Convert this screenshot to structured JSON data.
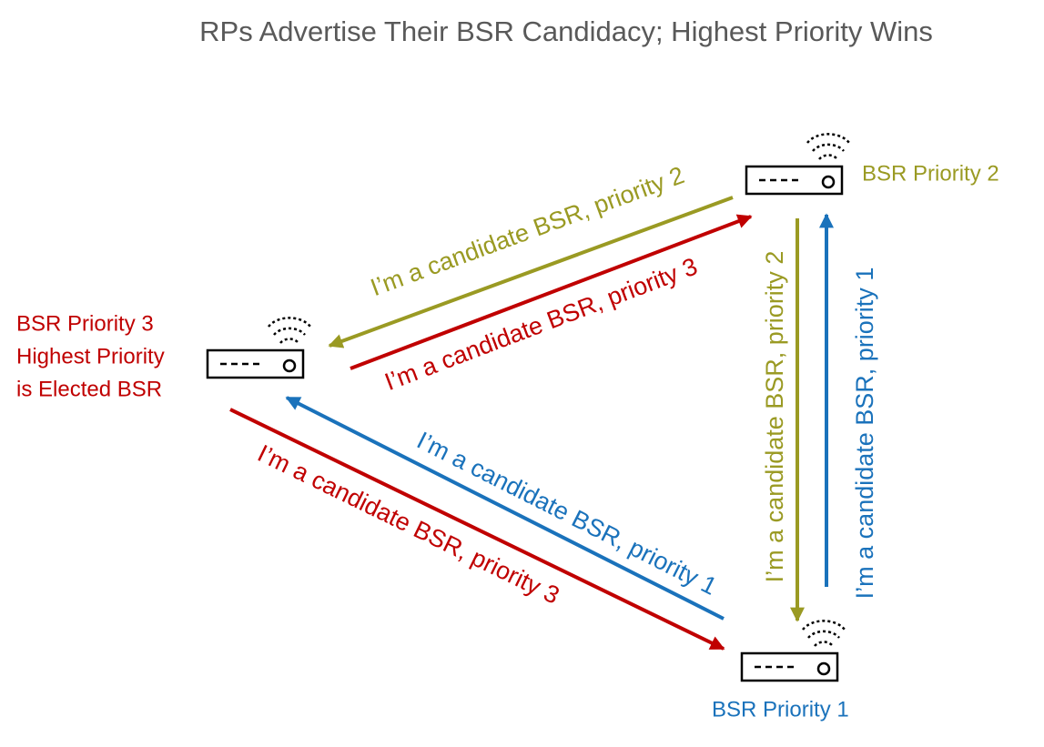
{
  "title": "RPs Advertise Their BSR Candidacy; Highest Priority Wins",
  "nodes": [
    {
      "lines": [
        "BSR Priority 3",
        "Highest Priority",
        "is Elected BSR"
      ]
    },
    {
      "lines": [
        "BSR Priority 2"
      ]
    },
    {
      "lines": [
        "BSR Priority 1"
      ]
    }
  ],
  "messages": [
    "I’m a candidate BSR, priority 2",
    "I’m a candidate BSR, priority 3",
    "I’m a candidate BSR, priority 1",
    "I’m a candidate BSR, priority 3",
    "I’m a candidate BSR, priority 2",
    "I’m a candidate BSR, priority 1"
  ]
}
